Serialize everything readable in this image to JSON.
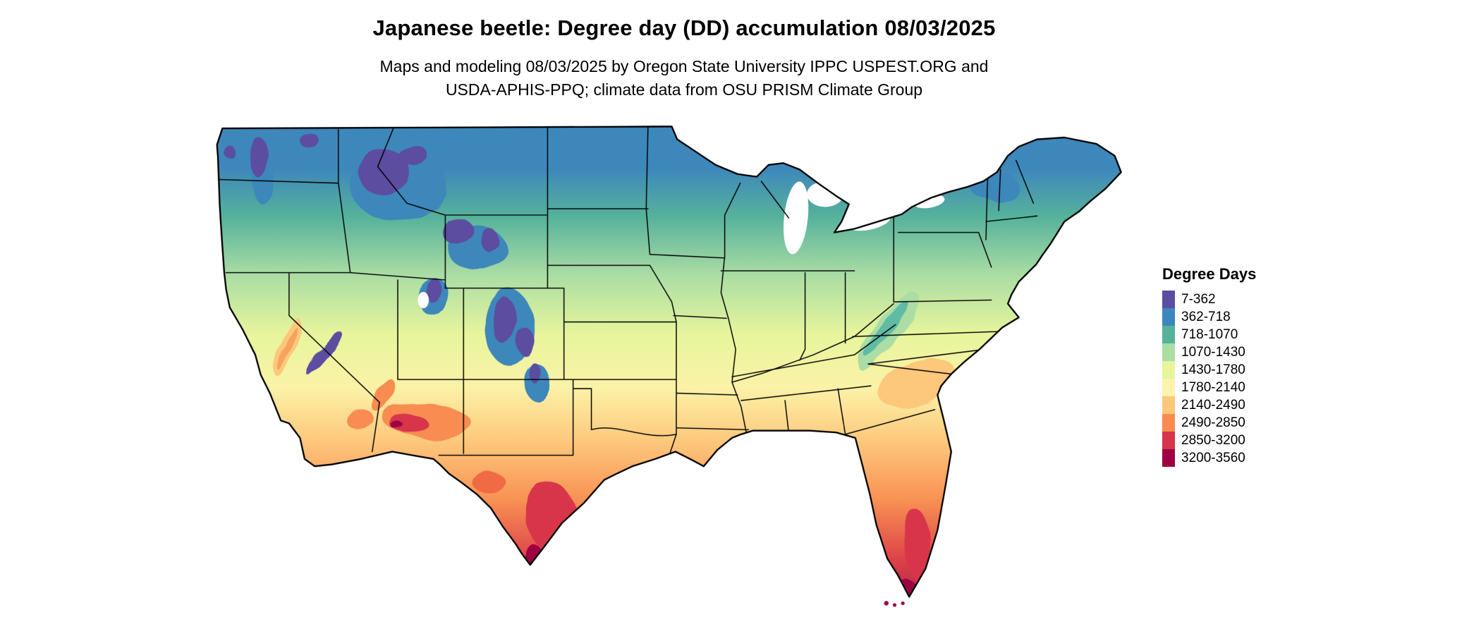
{
  "header": {
    "title": "Japanese beetle: Degree day (DD) accumulation 08/03/2025",
    "subtitle_line1": "Maps and modeling 08/03/2025 by Oregon State University IPPC USPEST.ORG and",
    "subtitle_line2": "USDA-APHIS-PPQ; climate data from OSU PRISM Climate Group"
  },
  "map": {
    "region": "Continental United States",
    "description": "Raster map of accumulated degree days with state boundaries, colored by the Degree Days legend classes"
  },
  "legend": {
    "title": "Degree Days",
    "items": [
      {
        "label": "7-362",
        "color": "#5b4da1"
      },
      {
        "label": "362-718",
        "color": "#3d87bb"
      },
      {
        "label": "718-1070",
        "color": "#56b29b"
      },
      {
        "label": "1070-1430",
        "color": "#abdda4"
      },
      {
        "label": "1430-1780",
        "color": "#e7f59c"
      },
      {
        "label": "1780-2140",
        "color": "#fdf3ae"
      },
      {
        "label": "2140-2490",
        "color": "#fdc87c"
      },
      {
        "label": "2490-2850",
        "color": "#f88c51"
      },
      {
        "label": "2850-3200",
        "color": "#d8344b"
      },
      {
        "label": "3200-3560",
        "color": "#9e0142"
      }
    ]
  }
}
